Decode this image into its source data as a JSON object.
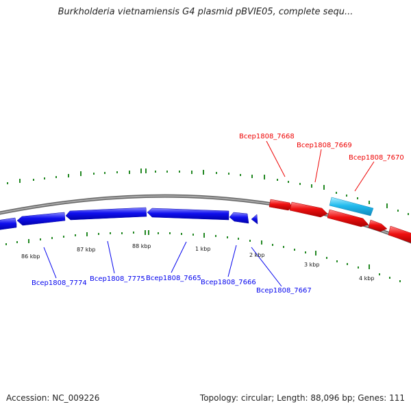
{
  "title": "Burkholderia vietnamiensis G4 plasmid pBVIE05, complete sequ...",
  "footer": {
    "accession": "Accession: NC_009226",
    "summary": "Topology: circular; Length: 88,096 bp; Genes: 111"
  },
  "kbp_labels": [
    "86 kbp",
    "87 kbp",
    "88 kbp",
    "1 kbp",
    "2 kbp",
    "3 kbp",
    "4 kbp"
  ],
  "genes": {
    "forward": [
      {
        "name": "Bcep1808_7668"
      },
      {
        "name": "Bcep1808_7669"
      },
      {
        "name": "Bcep1808_7670"
      }
    ],
    "reverse": [
      {
        "name": "Bcep1808_7774"
      },
      {
        "name": "Bcep1808_7775"
      },
      {
        "name": "Bcep1808_7665"
      },
      {
        "name": "Bcep1808_7666"
      },
      {
        "name": "Bcep1808_7667"
      }
    ]
  },
  "colors": {
    "forward": "#ee0000",
    "reverse": "#0000ee",
    "highlight": "#22bbee",
    "backbone": "#888888",
    "ticks": "#228822"
  }
}
